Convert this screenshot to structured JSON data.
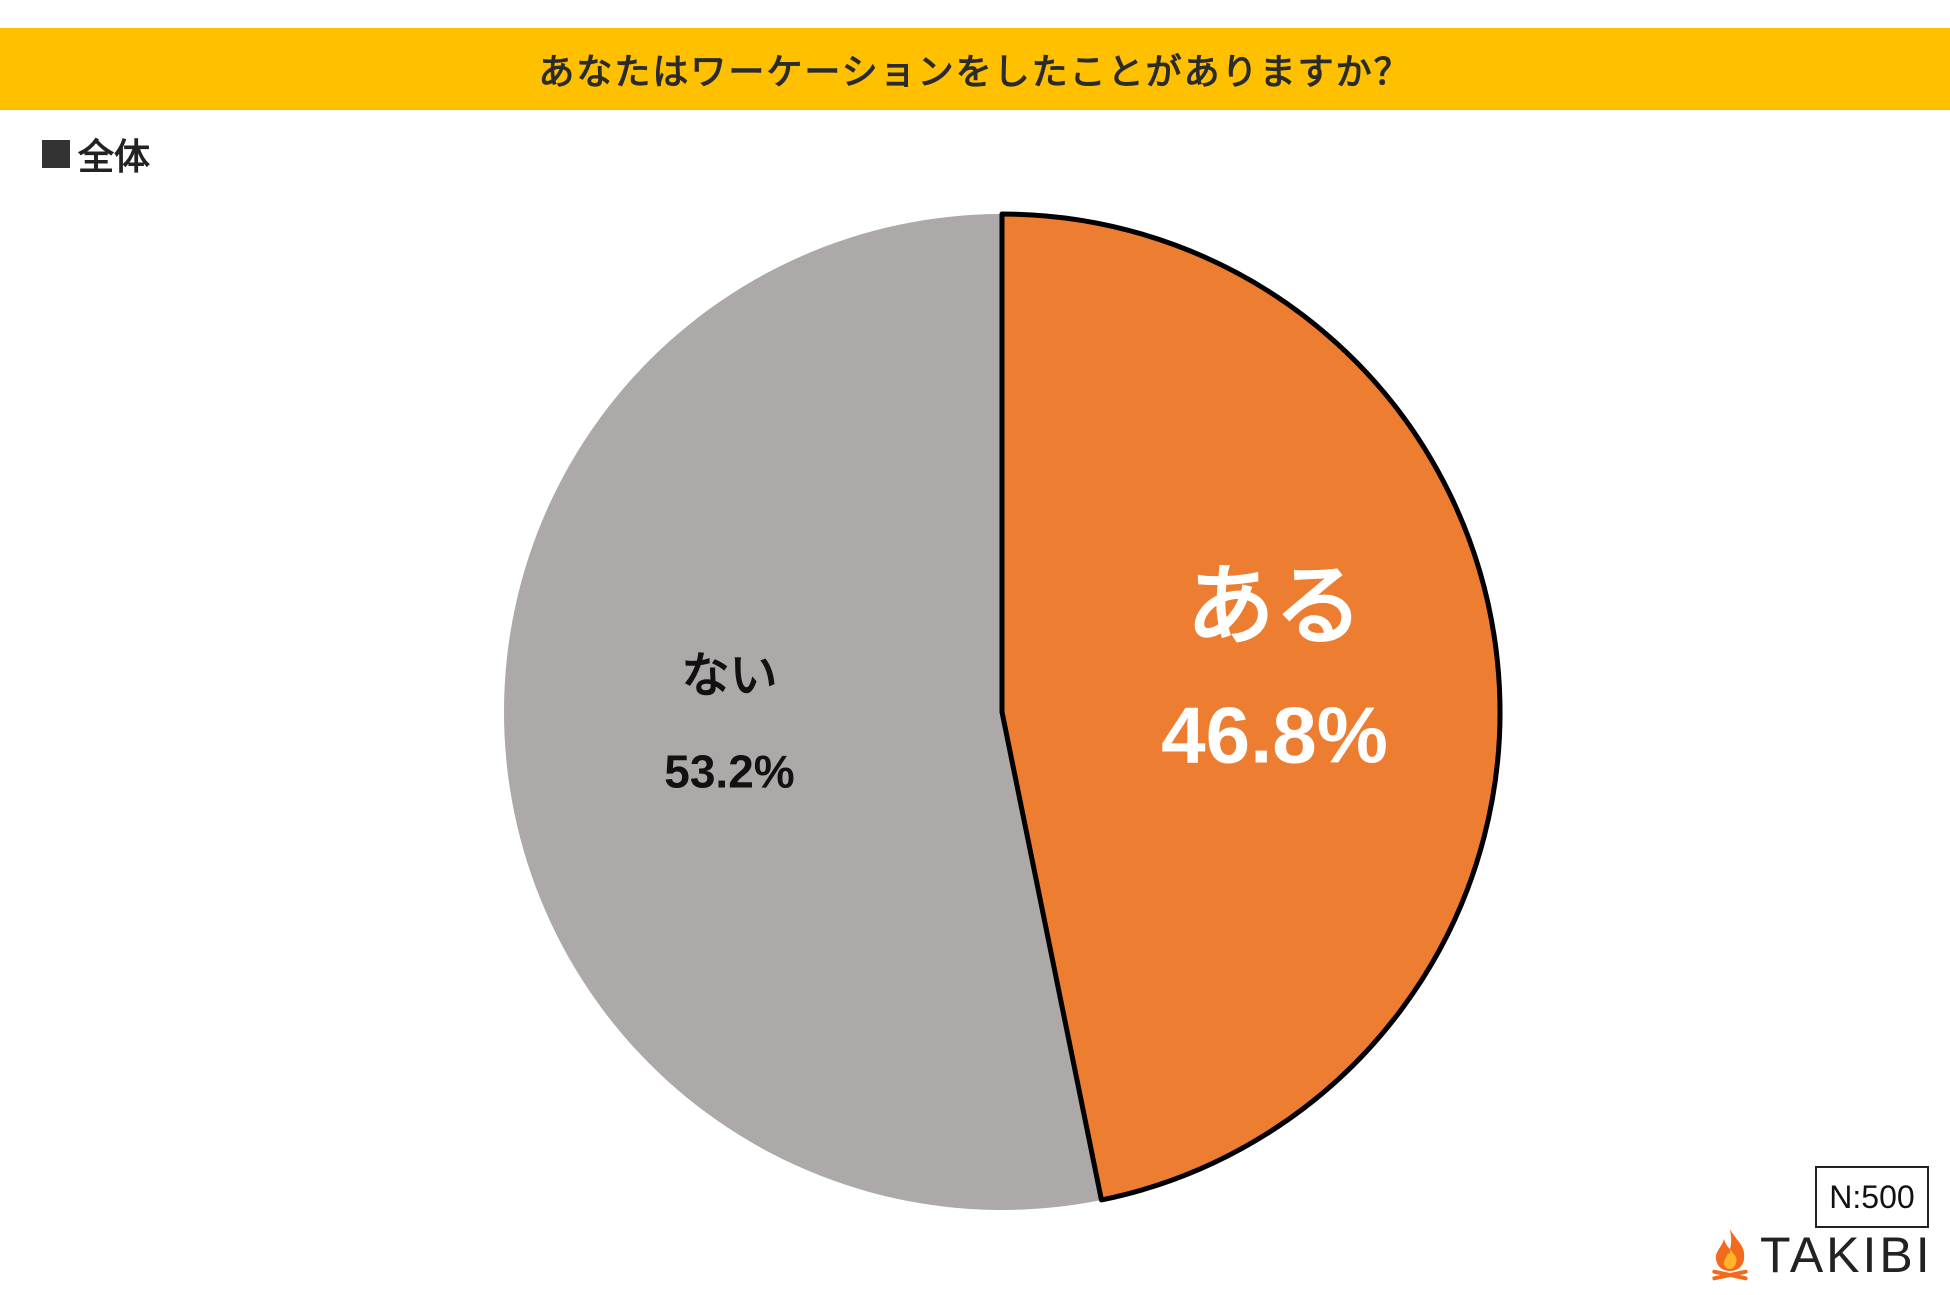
{
  "title": "あなたはワーケーションをしたことがありますか？",
  "subset_label": "全体",
  "sample_size": "N:500",
  "brand": "TAKIBI",
  "colors": {
    "title_bar": "#FFC000",
    "slice_yes": "#ED7D31",
    "slice_no": "#ADA9A8",
    "label_yes": "#ffffff",
    "label_no": "#111111",
    "outline": "#000000"
  },
  "chart_data": {
    "type": "pie",
    "categories": [
      "ある",
      "ない"
    ],
    "values": [
      46.8,
      53.2
    ],
    "labels": [
      "46.8%",
      "53.2%"
    ],
    "start": "12 o'clock",
    "direction": "clockwise",
    "highlighted": "ある"
  }
}
